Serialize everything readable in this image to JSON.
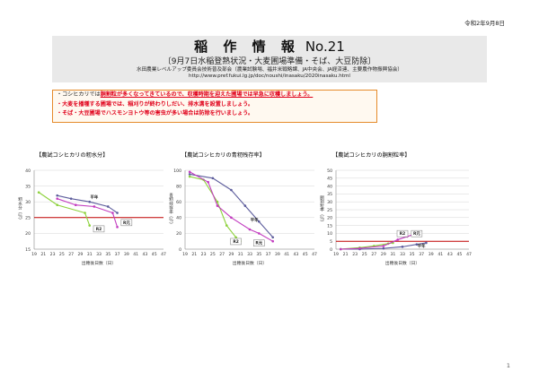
{
  "date": "令和2年9月8日",
  "header": {
    "title": "稲 作 情 報",
    "number": "No.21",
    "subtitle": "〔9月7日水稲登熟状況・大麦圃場準備・そば、大豆防除〕",
    "org": "水田農業レベルアップ委員会技術普及部会（農業試験場、福井米戦略課、JA中央会、JA経済連、主要農作物振興協会）",
    "url": "http://www.pref.fukui.lg.jp/doc/noushi/inasaku/2020inasaku.html"
  },
  "notice": {
    "line1_prefix": "・コシヒカリでは",
    "line1_red": "胴割粒が多くなってきているので、収穫時期を迎えた圃場では早急に収穫しましょう。",
    "line2": "・大麦を播種する圃場では、稲刈りが終わりしだい、排水溝を設置しましょう。",
    "line3": "・そば・大豆圃場でハスモンヨトウ等の害虫が多い場合は防除を行いましょう。"
  },
  "charts": [
    {
      "title": "【農試コシヒカリの籾水分】",
      "ylabel": "籾水分（％）",
      "xlabel": "出穂後日数（日）"
    },
    {
      "title": "【農試コシヒカリの青籾残存率】",
      "ylabel": "青籾残存率（％）",
      "xlabel": "出穂後日数（日）"
    },
    {
      "title": "【農試コシヒカリの胴割粒率】",
      "ylabel": "胴割粒率（％）",
      "xlabel": "出穂後日数（日）"
    }
  ],
  "chart_data": [
    {
      "type": "line",
      "title": "【農試コシヒカリの籾水分】",
      "xlabel": "出穂後日数（日）",
      "ylabel": "籾水分（％）",
      "x_ticks": [
        19,
        21,
        23,
        25,
        27,
        29,
        31,
        33,
        35,
        37,
        39,
        41,
        43,
        45,
        47
      ],
      "y_ticks": [
        15,
        20,
        25,
        30,
        35,
        40
      ],
      "xlim": [
        19,
        47
      ],
      "ylim": [
        15,
        40
      ],
      "reference_line": 25,
      "series": [
        {
          "name": "",
          "color": "#5b5b9b",
          "points": [
            [
              24,
              32
            ],
            [
              27,
              31
            ],
            [
              31,
              30
            ],
            [
              35,
              28.5
            ],
            [
              37,
              26.5
            ]
          ]
        },
        {
          "name": "R2",
          "color": "#8cd13a",
          "points": [
            [
              20,
              33
            ],
            [
              24,
              29
            ],
            [
              30,
              26.5
            ],
            [
              31,
              22.5
            ]
          ]
        },
        {
          "name": "",
          "color": "#c23bbf",
          "points": [
            [
              24,
              31
            ],
            [
              28,
              29
            ],
            [
              32,
              28.5
            ],
            [
              36,
              26.5
            ],
            [
              37,
              22
            ]
          ]
        }
      ],
      "labels": [
        {
          "text": "平年",
          "x": 32,
          "y": 31
        },
        {
          "text": "R2",
          "x": 33,
          "y": 21
        },
        {
          "text": "R元",
          "x": 39,
          "y": 23
        }
      ]
    },
    {
      "type": "line",
      "title": "【農試コシヒカリの青籾残存率】",
      "xlabel": "出穂後日数（日）",
      "ylabel": "青籾残存率（％）",
      "x_ticks": [
        19,
        21,
        23,
        25,
        27,
        29,
        31,
        33,
        35,
        37,
        39,
        41,
        43,
        45,
        47
      ],
      "y_ticks": [
        0,
        20,
        40,
        60,
        80,
        100
      ],
      "xlim": [
        19,
        47
      ],
      "ylim": [
        0,
        100
      ],
      "series": [
        {
          "name": "",
          "color": "#5b5b9b",
          "points": [
            [
              20,
              95
            ],
            [
              25,
              90
            ],
            [
              29,
              75
            ],
            [
              32,
              55
            ],
            [
              35,
              35
            ],
            [
              38,
              15
            ]
          ]
        },
        {
          "name": "R2",
          "color": "#8cd13a",
          "points": [
            [
              20,
              92
            ],
            [
              23,
              88
            ],
            [
              26,
              60
            ],
            [
              28,
              30
            ],
            [
              30,
              15
            ],
            [
              31,
              10
            ]
          ]
        },
        {
          "name": "",
          "color": "#c23bbf",
          "points": [
            [
              20,
              98
            ],
            [
              24,
              85
            ],
            [
              26,
              55
            ],
            [
              29,
              40
            ],
            [
              33,
              25
            ],
            [
              35,
              20
            ],
            [
              38,
              10
            ]
          ]
        }
      ],
      "labels": [
        {
          "text": "平年",
          "x": 34,
          "y": 35
        },
        {
          "text": "R2",
          "x": 30,
          "y": 8
        },
        {
          "text": "R元",
          "x": 35,
          "y": 6
        }
      ]
    },
    {
      "type": "line",
      "title": "【農試コシヒカリの胴割粒率】",
      "xlabel": "出穂後日数（日）",
      "ylabel": "胴割粒率（％）",
      "x_ticks": [
        19,
        21,
        23,
        25,
        27,
        29,
        31,
        33,
        35,
        37,
        39,
        41,
        43,
        45,
        47
      ],
      "y_ticks": [
        0,
        5,
        10,
        15,
        20,
        25,
        30,
        35,
        40,
        45,
        50
      ],
      "xlim": [
        19,
        47
      ],
      "ylim": [
        0,
        50
      ],
      "reference_line": 5,
      "series": [
        {
          "name": "",
          "color": "#5b5b9b",
          "points": [
            [
              20,
              0
            ],
            [
              24,
              0
            ],
            [
              29,
              0.5
            ],
            [
              33,
              1.5
            ],
            [
              36,
              3
            ],
            [
              38,
              4
            ]
          ]
        },
        {
          "name": "R2",
          "color": "#8cd13a",
          "points": [
            [
              20,
              0
            ],
            [
              24,
              1
            ],
            [
              27,
              2
            ],
            [
              30,
              3.5
            ],
            [
              31,
              4
            ]
          ]
        },
        {
          "name": "",
          "color": "#c23bbf",
          "points": [
            [
              20,
              0
            ],
            [
              24,
              0.5
            ],
            [
              29,
              2
            ],
            [
              32,
              6
            ],
            [
              34,
              8
            ],
            [
              36,
              10
            ]
          ]
        }
      ],
      "labels": [
        {
          "text": "R2",
          "x": 33,
          "y": 9
        },
        {
          "text": "R元",
          "x": 36,
          "y": 9
        },
        {
          "text": "平年",
          "x": 37,
          "y": 1
        }
      ]
    }
  ],
  "page_number": "1"
}
